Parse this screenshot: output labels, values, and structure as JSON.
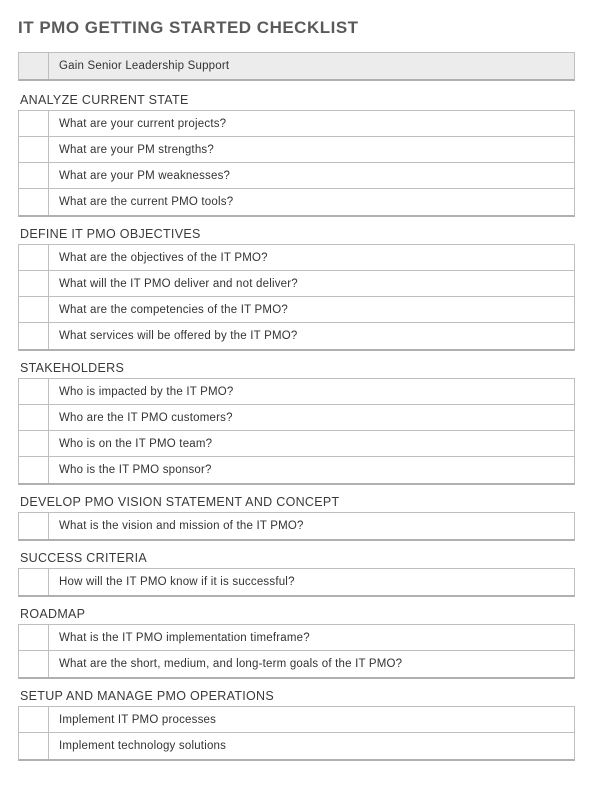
{
  "title": "IT PMO GETTING STARTED CHECKLIST",
  "colors": {
    "title_color": "#5a5a5a",
    "text_color": "#333333",
    "border_color": "#bfbfbf",
    "border_bottom": "#b0b0b0",
    "shaded_bg": "#ececec",
    "page_bg": "#ffffff"
  },
  "typography": {
    "title_fontsize": 17,
    "section_fontsize": 12.5,
    "item_fontsize": 11.5,
    "font_family": "Century Gothic"
  },
  "intro_item": "Gain Senior Leadership Support",
  "sections": [
    {
      "heading": "ANALYZE CURRENT STATE",
      "items": [
        "What are your current projects?",
        "What are your PM strengths?",
        "What are your PM weaknesses?",
        "What are the current PMO tools?"
      ]
    },
    {
      "heading": "DEFINE IT PMO OBJECTIVES",
      "items": [
        "What are the objectives of the IT PMO?",
        "What will the IT PMO deliver and not deliver?",
        "What are the competencies of the IT PMO?",
        "What services will be offered by the IT PMO?"
      ]
    },
    {
      "heading": "STAKEHOLDERS",
      "items": [
        "Who is impacted by the IT PMO?",
        "Who are the IT PMO customers?",
        "Who is on the IT PMO team?",
        "Who is the IT PMO sponsor?"
      ]
    },
    {
      "heading": "DEVELOP PMO VISION STATEMENT AND CONCEPT",
      "items": [
        "What is the vision and mission of the IT PMO?"
      ]
    },
    {
      "heading": "SUCCESS CRITERIA",
      "items": [
        "How will the IT PMO know if it is successful?"
      ]
    },
    {
      "heading": "ROADMAP",
      "items": [
        "What is the IT PMO implementation timeframe?",
        "What are the short, medium, and long-term goals of the IT PMO?"
      ]
    },
    {
      "heading": "SETUP AND MANAGE PMO OPERATIONS",
      "items": [
        "Implement IT PMO processes",
        "Implement technology solutions"
      ]
    }
  ]
}
